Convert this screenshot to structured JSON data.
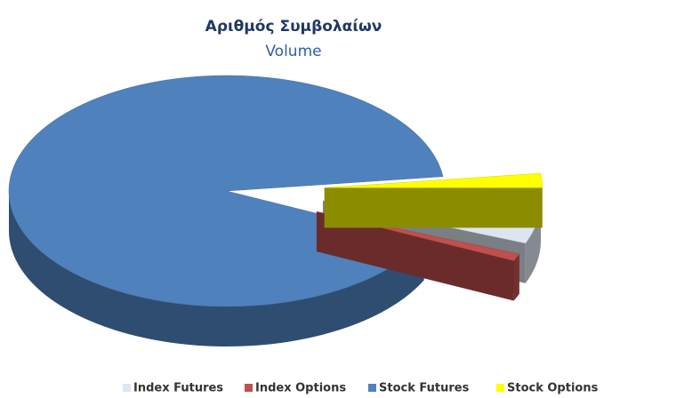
{
  "chart_data": {
    "type": "pie3d",
    "title": "Αριθμός Συμβολαίων",
    "subtitle": "Volume",
    "categories": [
      "Index Futures",
      "Index Options",
      "Stock Futures",
      "Stock Options"
    ],
    "values": [
      6,
      1,
      91,
      2
    ],
    "colors": [
      "#dce6f2",
      "#c0504d",
      "#4f81bd",
      "#ffff00"
    ],
    "exploded": [
      true,
      true,
      false,
      true
    ]
  }
}
